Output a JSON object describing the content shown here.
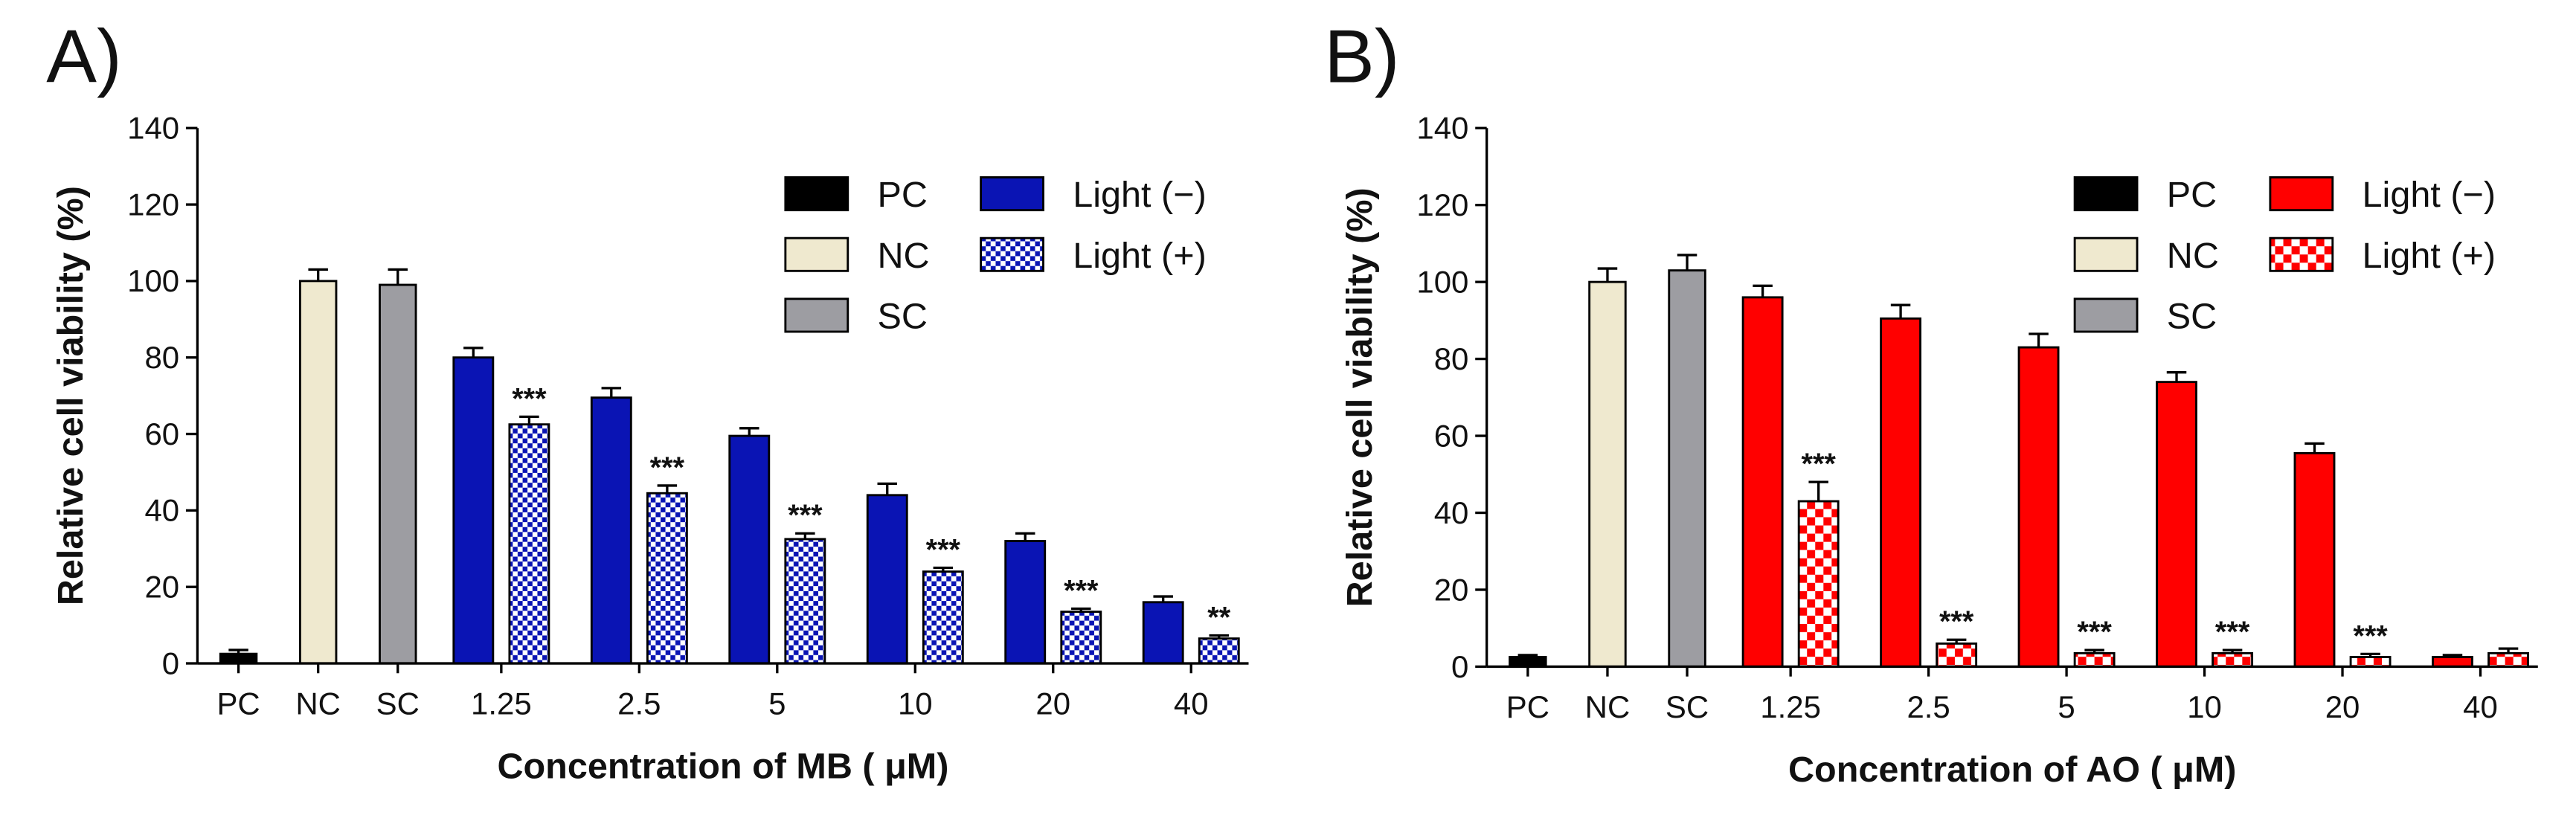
{
  "chart_data": [
    {
      "type": "bar",
      "panel_label": "A)",
      "xlabel": "Concentration of MB ( μM)",
      "ylabel": "Relative cell viability (%)",
      "categories": [
        "PC",
        "NC",
        "SC",
        "1.25",
        "2.5",
        "5",
        "10",
        "20",
        "40"
      ],
      "ylim": [
        0,
        140
      ],
      "yticks": [
        0,
        20,
        40,
        60,
        80,
        100,
        120,
        140
      ],
      "legend": "upper right",
      "series": [
        {
          "name": "PC",
          "color": "#000000",
          "values": [
            2.5,
            null,
            null,
            null,
            null,
            null,
            null,
            null,
            null
          ],
          "errors": [
            1,
            null,
            null,
            null,
            null,
            null,
            null,
            null,
            null
          ]
        },
        {
          "name": "NC",
          "color": "#efe9cf",
          "values": [
            null,
            100,
            null,
            null,
            null,
            null,
            null,
            null,
            null
          ],
          "errors": [
            null,
            3,
            null,
            null,
            null,
            null,
            null,
            null,
            null
          ]
        },
        {
          "name": "SC",
          "color": "#9d9da2",
          "values": [
            null,
            null,
            99,
            null,
            null,
            null,
            null,
            null,
            null
          ],
          "errors": [
            null,
            null,
            4,
            null,
            null,
            null,
            null,
            null,
            null
          ]
        },
        {
          "name": "Light (−)",
          "color": "#0a14b4",
          "values": [
            null,
            null,
            null,
            80,
            69.5,
            59.5,
            44,
            32,
            16
          ],
          "errors": [
            null,
            null,
            null,
            2.5,
            2.5,
            2,
            3,
            2,
            1.5
          ]
        },
        {
          "name": "Light (+)",
          "color": "#0a14b4",
          "pattern": "checker",
          "values": [
            null,
            null,
            null,
            62.5,
            44.5,
            32.5,
            24,
            13.5,
            6.5
          ],
          "errors": [
            null,
            null,
            null,
            2,
            2,
            1.5,
            1,
            0.8,
            0.8
          ],
          "significance": [
            null,
            null,
            null,
            "***",
            "***",
            "***",
            "***",
            "***",
            "**"
          ]
        }
      ]
    },
    {
      "type": "bar",
      "panel_label": "B)",
      "xlabel": "Concentration of AO ( μM)",
      "ylabel": "Relative cell viability (%)",
      "categories": [
        "PC",
        "NC",
        "SC",
        "1.25",
        "2.5",
        "5",
        "10",
        "20",
        "40"
      ],
      "ylim": [
        0,
        140
      ],
      "yticks": [
        0,
        20,
        40,
        60,
        80,
        100,
        120,
        140
      ],
      "legend": "upper right",
      "series": [
        {
          "name": "PC",
          "color": "#000000",
          "values": [
            2.5,
            null,
            null,
            null,
            null,
            null,
            null,
            null,
            null
          ],
          "errors": [
            0.5,
            null,
            null,
            null,
            null,
            null,
            null,
            null,
            null
          ]
        },
        {
          "name": "NC",
          "color": "#efe9cf",
          "values": [
            null,
            100,
            null,
            null,
            null,
            null,
            null,
            null,
            null
          ],
          "errors": [
            null,
            3.5,
            null,
            null,
            null,
            null,
            null,
            null,
            null
          ]
        },
        {
          "name": "SC",
          "color": "#9d9da2",
          "values": [
            null,
            null,
            103,
            null,
            null,
            null,
            null,
            null,
            null
          ],
          "errors": [
            null,
            null,
            4,
            null,
            null,
            null,
            null,
            null,
            null
          ]
        },
        {
          "name": "Light (−)",
          "color": "#ff0000",
          "values": [
            null,
            null,
            null,
            96,
            90.5,
            83,
            74,
            55.5,
            2.5
          ],
          "errors": [
            null,
            null,
            null,
            3,
            3.5,
            3.5,
            2.5,
            2.5,
            0.5
          ]
        },
        {
          "name": "Light (+)",
          "color": "#ff0000",
          "pattern": "checker",
          "values": [
            null,
            null,
            null,
            43,
            6,
            3.5,
            3.5,
            2.5,
            3.5
          ],
          "errors": [
            null,
            null,
            null,
            5,
            1,
            0.8,
            0.8,
            0.8,
            1.2
          ],
          "significance": [
            null,
            null,
            null,
            "***",
            "***",
            "***",
            "***",
            "***",
            null
          ]
        }
      ]
    }
  ]
}
